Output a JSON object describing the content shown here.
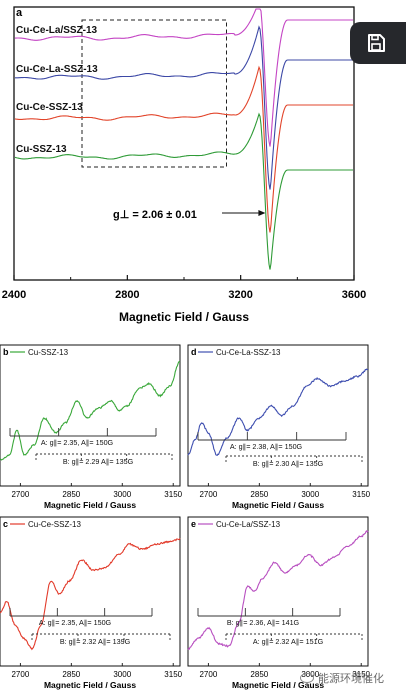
{
  "chart_data": [
    {
      "panel": "a",
      "type": "line",
      "xlabel": "Magnetic Field / Gauss",
      "ylabel": "",
      "xlim": [
        2400,
        3600
      ],
      "xticks": [
        2400,
        2800,
        3200,
        3600
      ],
      "xtick_labels": [
        "2400",
        "2800",
        "3200",
        "3600"
      ],
      "series": [
        {
          "name": "Cu-Ce-La/SSZ-13",
          "color": "#c445c4",
          "offset": 3
        },
        {
          "name": "Cu-Ce-La-SSZ-13",
          "color": "#3c48a6",
          "offset": 2
        },
        {
          "name": "Cu-Ce-SSZ-13",
          "color": "#e2452b",
          "offset": 1
        },
        {
          "name": "Cu-SSZ-13",
          "color": "#2f9b37",
          "offset": 0
        }
      ],
      "annotation": {
        "text": "g⊥ = 2.06 ± 0.01",
        "x": 3305
      },
      "dashed_box": {
        "x": [
          2640,
          3150
        ]
      }
    },
    {
      "panel": "b",
      "type": "line",
      "legend": "Cu-SSZ-13",
      "color": "#3aa83a",
      "xlabel": "Magnetic Field / Gauss",
      "xlim": [
        2640,
        3170
      ],
      "xticks": [
        2700,
        2850,
        3000,
        3150
      ],
      "xtick_labels": [
        "2700",
        "2850",
        "3000",
        "3150"
      ],
      "hyperfine": [
        {
          "label": "A: g∥= 2.35, A∥= 150G",
          "g": 2.35,
          "A": 150
        },
        {
          "label": "B: g∥= 2.29  A∥= 135G",
          "g": 2.29,
          "A": 135
        }
      ]
    },
    {
      "panel": "d",
      "type": "line",
      "legend": "Cu-Ce-La-SSZ-13",
      "color": "#3f4fb0",
      "xlabel": "Magnetic Field / Gauss",
      "xlim": [
        2640,
        3170
      ],
      "xticks": [
        2700,
        2850,
        3000,
        3150
      ],
      "xtick_labels": [
        "2700",
        "2850",
        "3000",
        "3150"
      ],
      "hyperfine": [
        {
          "label": "A: g∥= 2.38, A∥= 150G",
          "g": 2.38,
          "A": 150
        },
        {
          "label": "B: g∥= 2.30  A∥= 135G",
          "g": 2.3,
          "A": 135
        }
      ]
    },
    {
      "panel": "c",
      "type": "line",
      "legend": "Cu-Ce-SSZ-13",
      "color": "#e23a2a",
      "xlabel": "Magnetic Field / Gauss",
      "xlim": [
        2640,
        3170
      ],
      "xticks": [
        2700,
        2850,
        3000,
        3150
      ],
      "xtick_labels": [
        "2700",
        "2850",
        "3000",
        "3150"
      ],
      "hyperfine": [
        {
          "label": "A: g∥= 2.35, A∥= 150G",
          "g": 2.35,
          "A": 150
        },
        {
          "label": "B: g∥= 2.32  A∥= 139G",
          "g": 2.32,
          "A": 139
        }
      ]
    },
    {
      "panel": "e",
      "type": "line",
      "legend": "Cu-Ce-La/SSZ-13",
      "color": "#b84fc0",
      "xlabel": "Magnetic Field / Gauss",
      "xlim": [
        2640,
        3170
      ],
      "xticks": [
        2700,
        2850,
        3000,
        3150
      ],
      "xtick_labels": [
        "2700",
        "2850",
        "3000",
        "3150"
      ],
      "hyperfine": [
        {
          "label": "B: g∥= 2.36, A∥= 141G",
          "g": 2.36,
          "A": 141
        },
        {
          "label": "A: g∥= 2.32  A∥= 151G",
          "g": 2.32,
          "A": 151
        }
      ]
    }
  ],
  "overlay": {
    "save_icon": "save-icon",
    "watermark_text": "能源环境催化"
  }
}
